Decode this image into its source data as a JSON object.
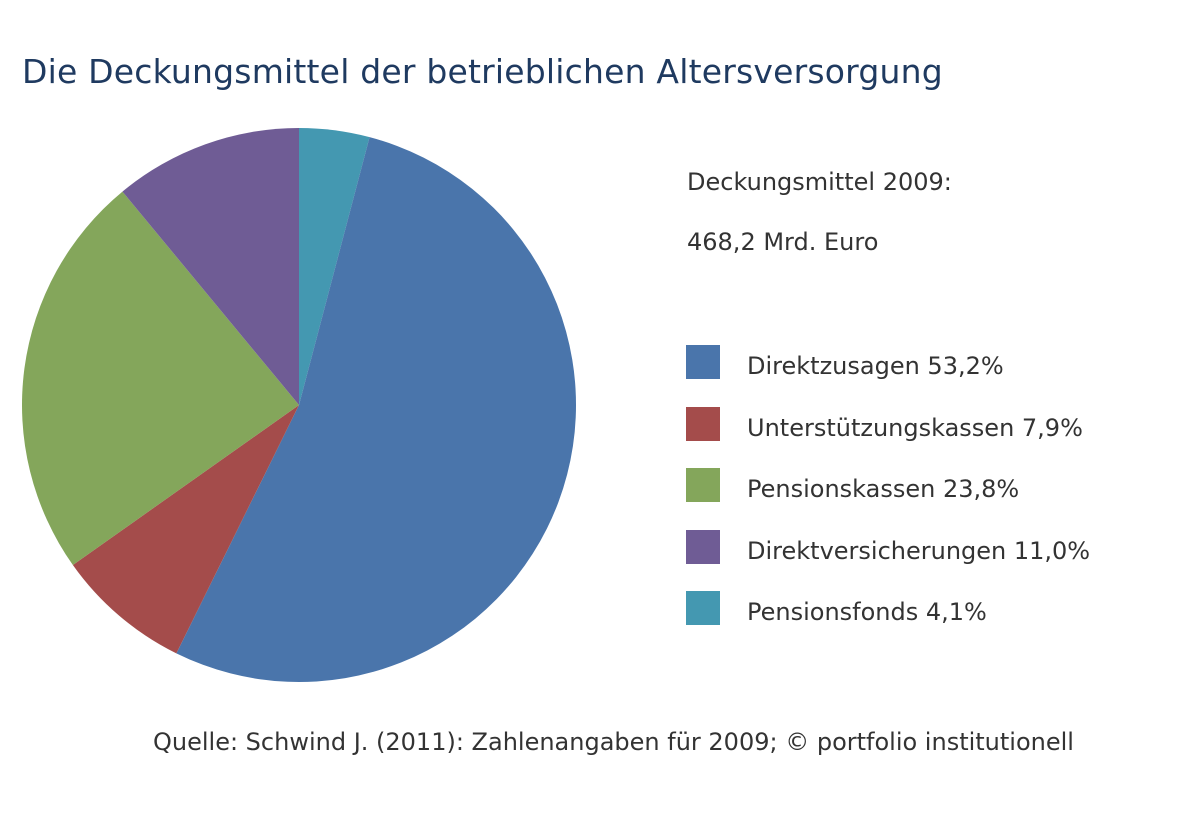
{
  "title": "Die Deckungsmittel der betrieblichen Altersversorgung",
  "total": {
    "label": "Deckungsmittel 2009:",
    "value": "468,2 Mrd. Euro"
  },
  "source": "Quelle: Schwind J. (2011): Zahlenangaben für 2009; © portfolio institutionell",
  "chart_data": {
    "type": "pie",
    "title": "Die Deckungsmittel der betrieblichen Altersversorgung",
    "legend_position": "right",
    "start_angle": "top (12 o'clock)",
    "direction": "clockwise",
    "slices": [
      {
        "name": "Pensionsfonds",
        "value": 4.1,
        "legend_label": "Pensionsfonds 4,1%",
        "color": "#4498b1"
      },
      {
        "name": "Direktzusagen",
        "value": 53.2,
        "legend_label": "Direktzusagen 53,2%",
        "color": "#4a75ab"
      },
      {
        "name": "Unterstützungskassen",
        "value": 7.9,
        "legend_label": "Unterstützungskassen 7,9%",
        "color": "#a44c4b"
      },
      {
        "name": "Pensionskassen",
        "value": 23.8,
        "legend_label": "Pensionskassen 23,8%",
        "color": "#84a65b"
      },
      {
        "name": "Direktversicherungen",
        "value": 11.0,
        "legend_label": "Direktversicherungen 11,0%",
        "color": "#6f5c95"
      }
    ],
    "legend_order": [
      "Direktzusagen",
      "Unterstützungskassen",
      "Pensionskassen",
      "Direktversicherungen",
      "Pensionsfonds"
    ]
  }
}
